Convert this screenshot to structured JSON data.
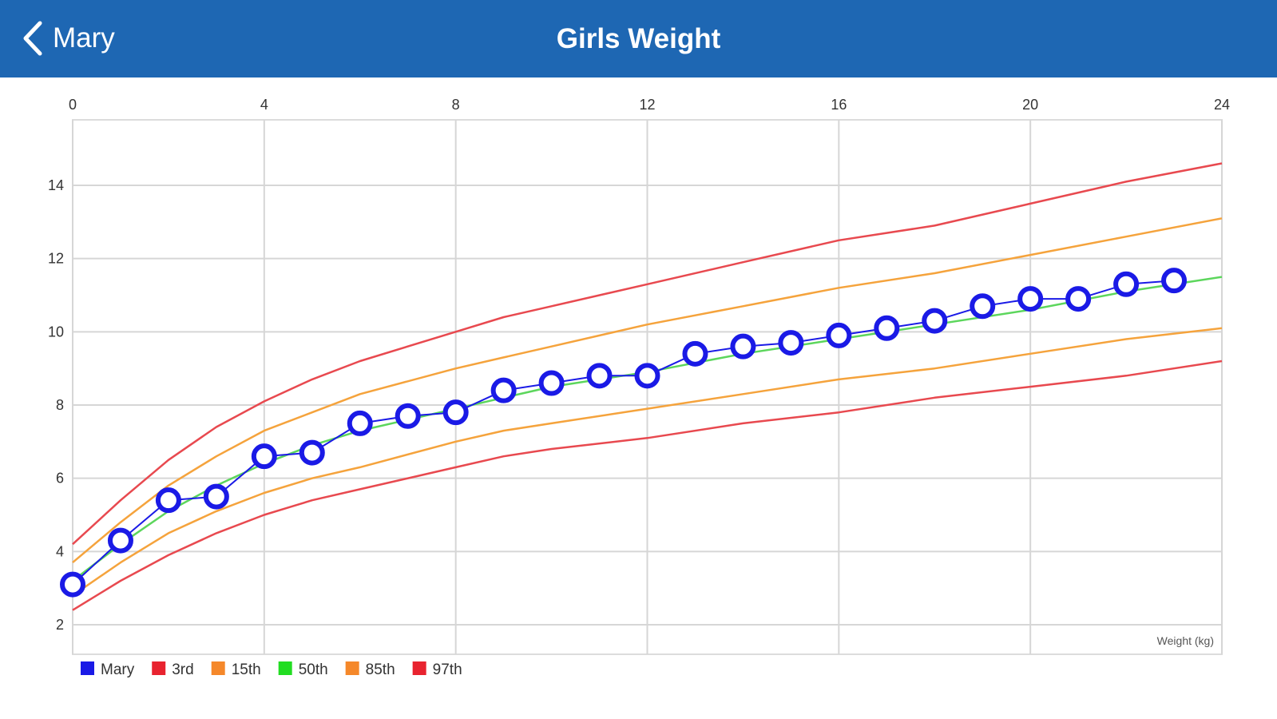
{
  "navbar": {
    "back_label": "Mary",
    "title": "Girls Weight",
    "background": "#1e67b3",
    "back_icon": "chevron-left-icon"
  },
  "chart_data": {
    "type": "line",
    "title": "Girls Weight",
    "xlabel": "",
    "ylabel": "Weight (kg)",
    "xlim": [
      0,
      24
    ],
    "ylim": [
      2,
      15.5
    ],
    "x_ticks": [
      0,
      4,
      8,
      12,
      16,
      20,
      24
    ],
    "y_ticks": [
      2,
      4,
      6,
      8,
      10,
      12,
      14
    ],
    "x_axis_position": "top",
    "grid": true,
    "legend": "bottom-left",
    "series": [
      {
        "name": "Mary",
        "color": "#1a1ae6",
        "markers": true,
        "x": [
          0,
          1,
          2,
          3,
          4,
          5,
          6,
          7,
          8,
          9,
          10,
          11,
          12,
          13,
          14,
          15,
          16,
          17,
          18,
          19,
          20,
          21,
          22,
          23
        ],
        "y": [
          3.1,
          4.3,
          5.4,
          5.5,
          6.6,
          6.7,
          7.5,
          7.7,
          7.8,
          8.4,
          8.6,
          8.8,
          8.8,
          9.4,
          9.6,
          9.7,
          9.9,
          10.1,
          10.3,
          10.7,
          10.9,
          10.9,
          11.3,
          11.4
        ]
      },
      {
        "name": "3rd",
        "color": "#e8494f",
        "x": [
          0,
          1,
          2,
          3,
          4,
          5,
          6,
          8,
          9,
          10,
          12,
          14,
          16,
          18,
          20,
          22,
          24
        ],
        "y": [
          2.4,
          3.2,
          3.9,
          4.5,
          5.0,
          5.4,
          5.7,
          6.3,
          6.6,
          6.8,
          7.1,
          7.5,
          7.8,
          8.2,
          8.5,
          8.8,
          9.2
        ]
      },
      {
        "name": "15th",
        "color": "#f5a33c",
        "x": [
          0,
          1,
          2,
          3,
          4,
          5,
          6,
          8,
          9,
          10,
          12,
          14,
          16,
          18,
          20,
          22,
          24
        ],
        "y": [
          2.8,
          3.7,
          4.5,
          5.1,
          5.6,
          6.0,
          6.3,
          7.0,
          7.3,
          7.5,
          7.9,
          8.3,
          8.7,
          9.0,
          9.4,
          9.8,
          10.1
        ]
      },
      {
        "name": "50th",
        "color": "#5cd65c",
        "x": [
          0,
          1,
          2,
          3,
          4,
          5,
          6,
          8,
          9,
          10,
          12,
          14,
          16,
          18,
          20,
          22,
          24
        ],
        "y": [
          3.2,
          4.2,
          5.1,
          5.8,
          6.4,
          6.9,
          7.3,
          7.9,
          8.2,
          8.5,
          8.9,
          9.4,
          9.8,
          10.2,
          10.6,
          11.1,
          11.5
        ]
      },
      {
        "name": "85th",
        "color": "#f5a33c",
        "x": [
          0,
          1,
          2,
          3,
          4,
          5,
          6,
          8,
          9,
          10,
          12,
          14,
          16,
          18,
          20,
          22,
          24
        ],
        "y": [
          3.7,
          4.8,
          5.8,
          6.6,
          7.3,
          7.8,
          8.3,
          9.0,
          9.3,
          9.6,
          10.2,
          10.7,
          11.2,
          11.6,
          12.1,
          12.6,
          13.1
        ]
      },
      {
        "name": "97th",
        "color": "#e8494f",
        "x": [
          0,
          1,
          2,
          3,
          4,
          5,
          6,
          8,
          9,
          10,
          12,
          14,
          16,
          18,
          20,
          22,
          24
        ],
        "y": [
          4.2,
          5.4,
          6.5,
          7.4,
          8.1,
          8.7,
          9.2,
          10.0,
          10.4,
          10.7,
          11.3,
          11.9,
          12.5,
          12.9,
          13.5,
          14.1,
          14.6
        ]
      }
    ],
    "legend_items": [
      {
        "name": "Mary",
        "color": "#1a1ae6"
      },
      {
        "name": "3rd",
        "color": "#e8232f"
      },
      {
        "name": "15th",
        "color": "#f5882a"
      },
      {
        "name": "50th",
        "color": "#22dd22"
      },
      {
        "name": "85th",
        "color": "#f5882a"
      },
      {
        "name": "97th",
        "color": "#e8232f"
      }
    ]
  }
}
